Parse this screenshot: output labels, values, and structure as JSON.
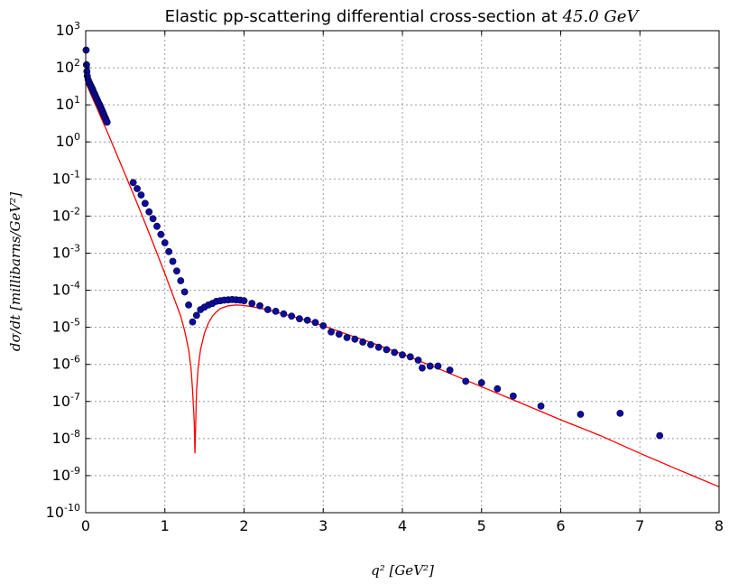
{
  "chart_data": {
    "type": "scatter",
    "title": {
      "prefix": "Elastic pp-scattering differential cross-section at ",
      "math": "45.0 GeV"
    },
    "xlabel": "q² [GeV²]",
    "ylabel": "dσ/dt [millibarns/GeV²]",
    "xlim": [
      0,
      8
    ],
    "ylim": [
      1e-10,
      1000
    ],
    "yscale": "log",
    "grid": true,
    "x_ticks": [
      0,
      1,
      2,
      3,
      4,
      5,
      6,
      7,
      8
    ],
    "y_tick_exponents": [
      -10,
      -9,
      -8,
      -7,
      -6,
      -5,
      -4,
      -3,
      -2,
      -1,
      0,
      1,
      2,
      3
    ],
    "colors": {
      "data": "#0d0d9a",
      "data_edge": "#000044",
      "fit": "#ff0000"
    },
    "series": [
      {
        "kind": "points",
        "x": [
          0.005,
          0.01,
          0.015,
          0.02,
          0.03,
          0.04,
          0.05,
          0.06,
          0.07,
          0.08,
          0.09,
          0.1,
          0.11,
          0.12,
          0.13,
          0.14,
          0.15,
          0.16,
          0.17,
          0.18,
          0.19,
          0.2,
          0.21,
          0.22,
          0.23,
          0.24,
          0.25,
          0.26,
          0.27,
          0.6,
          0.65,
          0.7,
          0.75,
          0.8,
          0.85,
          0.9,
          0.95,
          1.0,
          1.05,
          1.1,
          1.15,
          1.2,
          1.25,
          1.3,
          1.35,
          1.4,
          1.45,
          1.5,
          1.55,
          1.6,
          1.65,
          1.7,
          1.75,
          1.8,
          1.85,
          1.9,
          1.95,
          2.0,
          2.1,
          2.2,
          2.3,
          2.4,
          2.5,
          2.6,
          2.7,
          2.8,
          2.9,
          3.0,
          3.1,
          3.2,
          3.3,
          3.4,
          3.5,
          3.6,
          3.7,
          3.8,
          3.9,
          4.0,
          4.1,
          4.2,
          4.25,
          4.35,
          4.45,
          4.6,
          4.8,
          5.0,
          5.2,
          5.4,
          5.75,
          6.25,
          6.75,
          7.25
        ],
        "y": [
          300,
          120,
          80,
          60,
          48,
          42,
          38,
          34,
          31,
          28,
          25,
          22,
          20,
          18,
          16,
          14.5,
          13,
          11.5,
          10.5,
          9.5,
          8.5,
          7.6,
          6.8,
          6.0,
          5.4,
          4.8,
          4.3,
          3.8,
          3.4,
          0.08,
          0.055,
          0.037,
          0.022,
          0.013,
          0.0085,
          0.0053,
          0.0032,
          0.0019,
          0.0011,
          0.0006,
          0.00033,
          0.00018,
          9e-05,
          4e-05,
          1.4e-05,
          2.1e-05,
          3e-05,
          3.5e-05,
          4e-05,
          4.4e-05,
          5e-05,
          5.2e-05,
          5.4e-05,
          5.5e-05,
          5.6e-05,
          5.5e-05,
          5.4e-05,
          5.2e-05,
          4.4e-05,
          3.8e-05,
          3e-05,
          2.7e-05,
          2.3e-05,
          2e-05,
          1.7e-05,
          1.55e-05,
          1.35e-05,
          1.1e-05,
          7.5e-06,
          6.5e-06,
          5.3e-06,
          4.8e-06,
          4e-06,
          3.4e-06,
          2.9e-06,
          2.5e-06,
          2.1e-06,
          1.8e-06,
          1.6e-06,
          1.3e-06,
          8e-07,
          9e-07,
          9e-07,
          7e-07,
          3.5e-07,
          3.2e-07,
          2.2e-07,
          1.4e-07,
          7.5e-08,
          4.5e-08,
          4.8e-08,
          1.2e-08
        ]
      },
      {
        "kind": "line",
        "x": [
          0.0,
          0.05,
          0.1,
          0.15,
          0.2,
          0.25,
          0.3,
          0.4,
          0.5,
          0.6,
          0.7,
          0.8,
          0.9,
          1.0,
          1.1,
          1.2,
          1.25,
          1.3,
          1.33,
          1.35,
          1.37,
          1.38,
          1.39,
          1.4,
          1.42,
          1.45,
          1.5,
          1.55,
          1.6,
          1.65,
          1.7,
          1.8,
          1.9,
          2.0,
          2.2,
          2.4,
          2.6,
          2.8,
          3.0,
          3.3,
          3.6,
          4.0,
          4.5,
          5.0,
          5.5,
          6.0,
          6.5,
          7.0,
          7.5,
          8.0
        ],
        "y": [
          40,
          23,
          13,
          7.5,
          4.2,
          2.4,
          1.35,
          0.42,
          0.13,
          0.04,
          0.012,
          0.0035,
          0.001,
          0.00028,
          7.5e-05,
          2e-05,
          8e-06,
          2.5e-06,
          8e-07,
          2e-07,
          3e-08,
          4e-09,
          3e-08,
          2e-07,
          8e-07,
          2.5e-06,
          7e-06,
          1.3e-05,
          2e-05,
          2.6e-05,
          3.2e-05,
          3.8e-05,
          4e-05,
          3.9e-05,
          3.3e-05,
          2.6e-05,
          2e-05,
          1.5e-05,
          1.1e-05,
          6.5e-06,
          3.9e-06,
          1.9e-06,
          7e-07,
          2.5e-07,
          9e-08,
          3.2e-08,
          1.2e-08,
          4e-09,
          1.4e-09,
          5e-10
        ]
      }
    ]
  }
}
